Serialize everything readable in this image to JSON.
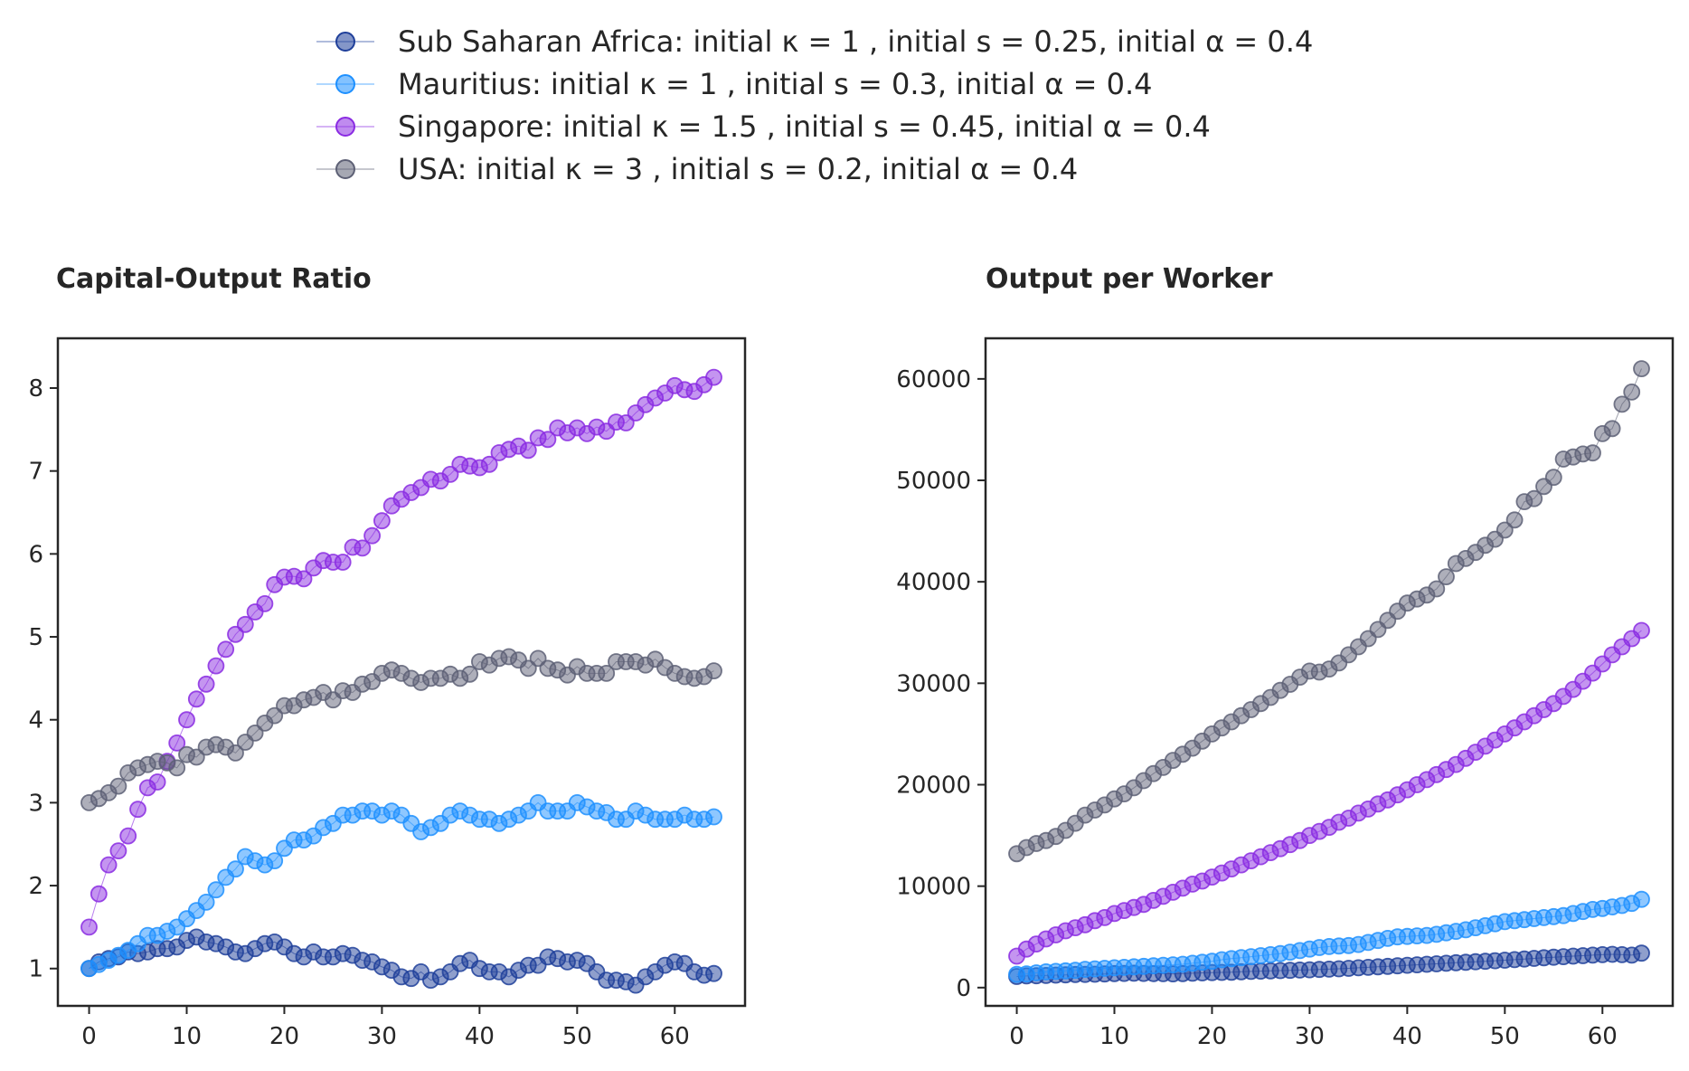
{
  "legend": [
    {
      "label": "Sub Saharan Africa: initial κ = 1 , initial s = 0.25, initial α = 0.4",
      "color": "#1f3f9a"
    },
    {
      "label": "Mauritius: initial κ = 1 , initial s = 0.3, initial α = 0.4",
      "color": "#1e90ff"
    },
    {
      "label": "Singapore: initial κ = 1.5 , initial s = 0.45, initial α = 0.4",
      "color": "#8a2be2"
    },
    {
      "label": "USA: initial κ = 3 , initial s = 0.2, initial α = 0.4",
      "color": "#5d6075"
    }
  ],
  "chart_data": [
    {
      "type": "line",
      "title": "Capital-Output Ratio",
      "xlabel": "",
      "ylabel": "",
      "x_start": 0,
      "x_step": 1,
      "xticks": [
        0,
        10,
        20,
        30,
        40,
        50,
        60
      ],
      "yticks": [
        1,
        2,
        3,
        4,
        5,
        6,
        7,
        8
      ],
      "xlim": [
        -3.2,
        67.2
      ],
      "ylim": [
        0.55,
        8.6
      ],
      "series": [
        {
          "name": "Sub Saharan Africa: initial κ = 1 , initial s = 0.25, initial α = 0.4",
          "color": "#1f3f9a",
          "values": [
            1.0,
            1.08,
            1.12,
            1.14,
            1.2,
            1.18,
            1.2,
            1.24,
            1.24,
            1.26,
            1.34,
            1.38,
            1.32,
            1.3,
            1.26,
            1.2,
            1.18,
            1.24,
            1.3,
            1.32,
            1.26,
            1.18,
            1.14,
            1.2,
            1.14,
            1.14,
            1.18,
            1.16,
            1.1,
            1.08,
            1.02,
            0.98,
            0.9,
            0.88,
            0.96,
            0.86,
            0.9,
            0.96,
            1.06,
            1.1,
            1.0,
            0.96,
            0.96,
            0.9,
            0.98,
            1.04,
            1.04,
            1.14,
            1.12,
            1.08,
            1.1,
            1.06,
            0.96,
            0.86,
            0.86,
            0.84,
            0.8,
            0.9,
            0.96,
            1.04,
            1.08,
            1.06,
            0.96,
            0.92,
            0.94
          ]
        },
        {
          "name": "Mauritius: initial κ = 1 , initial s = 0.3, initial α = 0.4",
          "color": "#1e90ff",
          "values": [
            1.0,
            1.05,
            1.1,
            1.16,
            1.22,
            1.3,
            1.4,
            1.4,
            1.45,
            1.5,
            1.6,
            1.7,
            1.8,
            1.95,
            2.1,
            2.2,
            2.35,
            2.3,
            2.25,
            2.3,
            2.45,
            2.55,
            2.55,
            2.6,
            2.7,
            2.75,
            2.85,
            2.85,
            2.9,
            2.9,
            2.85,
            2.9,
            2.85,
            2.75,
            2.65,
            2.7,
            2.75,
            2.85,
            2.9,
            2.85,
            2.8,
            2.8,
            2.75,
            2.8,
            2.85,
            2.9,
            3.0,
            2.9,
            2.9,
            2.9,
            3.0,
            2.95,
            2.9,
            2.88,
            2.8,
            2.8,
            2.9,
            2.85,
            2.8,
            2.8,
            2.8,
            2.85,
            2.8,
            2.8,
            2.83
          ]
        },
        {
          "name": "Singapore: initial κ = 1.5 , initial s = 0.45, initial α = 0.4",
          "color": "#8a2be2",
          "values": [
            1.5,
            1.9,
            2.25,
            2.42,
            2.6,
            2.92,
            3.18,
            3.25,
            3.5,
            3.72,
            4.0,
            4.25,
            4.43,
            4.65,
            4.85,
            5.03,
            5.15,
            5.3,
            5.4,
            5.63,
            5.72,
            5.73,
            5.7,
            5.83,
            5.92,
            5.9,
            5.9,
            6.08,
            6.07,
            6.22,
            6.4,
            6.58,
            6.66,
            6.74,
            6.8,
            6.9,
            6.88,
            6.96,
            7.08,
            7.06,
            7.04,
            7.08,
            7.22,
            7.26,
            7.3,
            7.25,
            7.4,
            7.38,
            7.52,
            7.46,
            7.52,
            7.45,
            7.53,
            7.48,
            7.59,
            7.58,
            7.7,
            7.8,
            7.88,
            7.94,
            8.03,
            7.98,
            7.96,
            8.04,
            8.13
          ]
        },
        {
          "name": "USA: initial κ = 3 , initial s = 0.2, initial α = 0.4",
          "color": "#5d6075",
          "values": [
            3.0,
            3.05,
            3.12,
            3.2,
            3.36,
            3.42,
            3.46,
            3.5,
            3.48,
            3.42,
            3.58,
            3.55,
            3.67,
            3.7,
            3.67,
            3.6,
            3.73,
            3.84,
            3.96,
            4.05,
            4.17,
            4.17,
            4.24,
            4.27,
            4.33,
            4.24,
            4.35,
            4.33,
            4.43,
            4.46,
            4.56,
            4.6,
            4.56,
            4.5,
            4.45,
            4.5,
            4.5,
            4.55,
            4.5,
            4.55,
            4.7,
            4.66,
            4.74,
            4.76,
            4.72,
            4.62,
            4.74,
            4.62,
            4.6,
            4.54,
            4.64,
            4.56,
            4.56,
            4.56,
            4.7,
            4.7,
            4.7,
            4.66,
            4.73,
            4.63,
            4.56,
            4.52,
            4.5,
            4.52,
            4.59
          ]
        }
      ]
    },
    {
      "type": "line",
      "title": "Output per Worker",
      "xlabel": "",
      "ylabel": "",
      "x_start": 0,
      "x_step": 1,
      "xticks": [
        0,
        10,
        20,
        30,
        40,
        50,
        60
      ],
      "yticks": [
        0,
        10000,
        20000,
        30000,
        40000,
        50000,
        60000
      ],
      "xlim": [
        -3.2,
        67.2
      ],
      "ylim": [
        -1800,
        64000
      ],
      "series": [
        {
          "name": "Sub Saharan Africa: initial κ = 1 , initial s = 0.25, initial α = 0.4",
          "color": "#1f3f9a",
          "values": [
            1100,
            1150,
            1170,
            1200,
            1230,
            1260,
            1290,
            1300,
            1320,
            1350,
            1380,
            1400,
            1420,
            1400,
            1380,
            1370,
            1360,
            1380,
            1420,
            1450,
            1480,
            1500,
            1520,
            1560,
            1600,
            1620,
            1650,
            1680,
            1700,
            1730,
            1760,
            1790,
            1820,
            1860,
            1900,
            1950,
            2000,
            2050,
            2100,
            2150,
            2200,
            2250,
            2300,
            2350,
            2400,
            2450,
            2500,
            2550,
            2600,
            2650,
            2700,
            2760,
            2820,
            2880,
            2940,
            3000,
            3050,
            3100,
            3150,
            3200,
            3250,
            3280,
            3250,
            3200,
            3400
          ]
        },
        {
          "name": "Mauritius: initial κ = 1 , initial s = 0.3, initial α = 0.4",
          "color": "#1e90ff",
          "values": [
            1300,
            1350,
            1450,
            1550,
            1600,
            1650,
            1700,
            1800,
            1850,
            1900,
            1950,
            2000,
            2050,
            2100,
            2150,
            2200,
            2250,
            2300,
            2400,
            2500,
            2600,
            2750,
            2850,
            2950,
            3050,
            3150,
            3250,
            3350,
            3500,
            3650,
            3800,
            3950,
            4050,
            4100,
            4150,
            4250,
            4450,
            4650,
            4850,
            5000,
            5050,
            5100,
            5150,
            5250,
            5400,
            5550,
            5700,
            5900,
            6100,
            6300,
            6500,
            6600,
            6700,
            6800,
            6900,
            7000,
            7100,
            7300,
            7500,
            7700,
            7800,
            7950,
            8100,
            8300,
            8700
          ]
        },
        {
          "name": "Singapore: initial κ = 1.5 , initial s = 0.45, initial α = 0.4",
          "color": "#8a2be2",
          "values": [
            3100,
            3800,
            4300,
            4800,
            5200,
            5600,
            5900,
            6200,
            6600,
            6900,
            7300,
            7600,
            7900,
            8200,
            8600,
            9000,
            9400,
            9800,
            10200,
            10500,
            10900,
            11300,
            11700,
            12100,
            12500,
            12900,
            13300,
            13700,
            14100,
            14500,
            15000,
            15400,
            15800,
            16300,
            16700,
            17200,
            17600,
            18100,
            18500,
            19000,
            19500,
            20000,
            20500,
            21000,
            21500,
            22000,
            22600,
            23200,
            23800,
            24400,
            25000,
            25600,
            26200,
            26800,
            27400,
            28000,
            28700,
            29400,
            30200,
            31000,
            31900,
            32800,
            33600,
            34400,
            35200
          ]
        },
        {
          "name": "USA: initial κ = 3 , initial s = 0.2, initial α = 0.4",
          "color": "#5d6075",
          "values": [
            13200,
            13800,
            14200,
            14500,
            14900,
            15500,
            16200,
            17000,
            17500,
            18000,
            18600,
            19100,
            19700,
            20400,
            21100,
            21700,
            22400,
            23000,
            23600,
            24300,
            25000,
            25600,
            26200,
            26800,
            27400,
            28000,
            28600,
            29300,
            29900,
            30600,
            31200,
            31100,
            31400,
            32000,
            32800,
            33600,
            34400,
            35300,
            36200,
            37100,
            37900,
            38300,
            38700,
            39300,
            40500,
            41800,
            42300,
            42900,
            43600,
            44200,
            45100,
            46100,
            47900,
            48200,
            49400,
            50300,
            52100,
            52300,
            52600,
            52700,
            54600,
            55100,
            57500,
            58700,
            61000
          ]
        }
      ]
    }
  ]
}
